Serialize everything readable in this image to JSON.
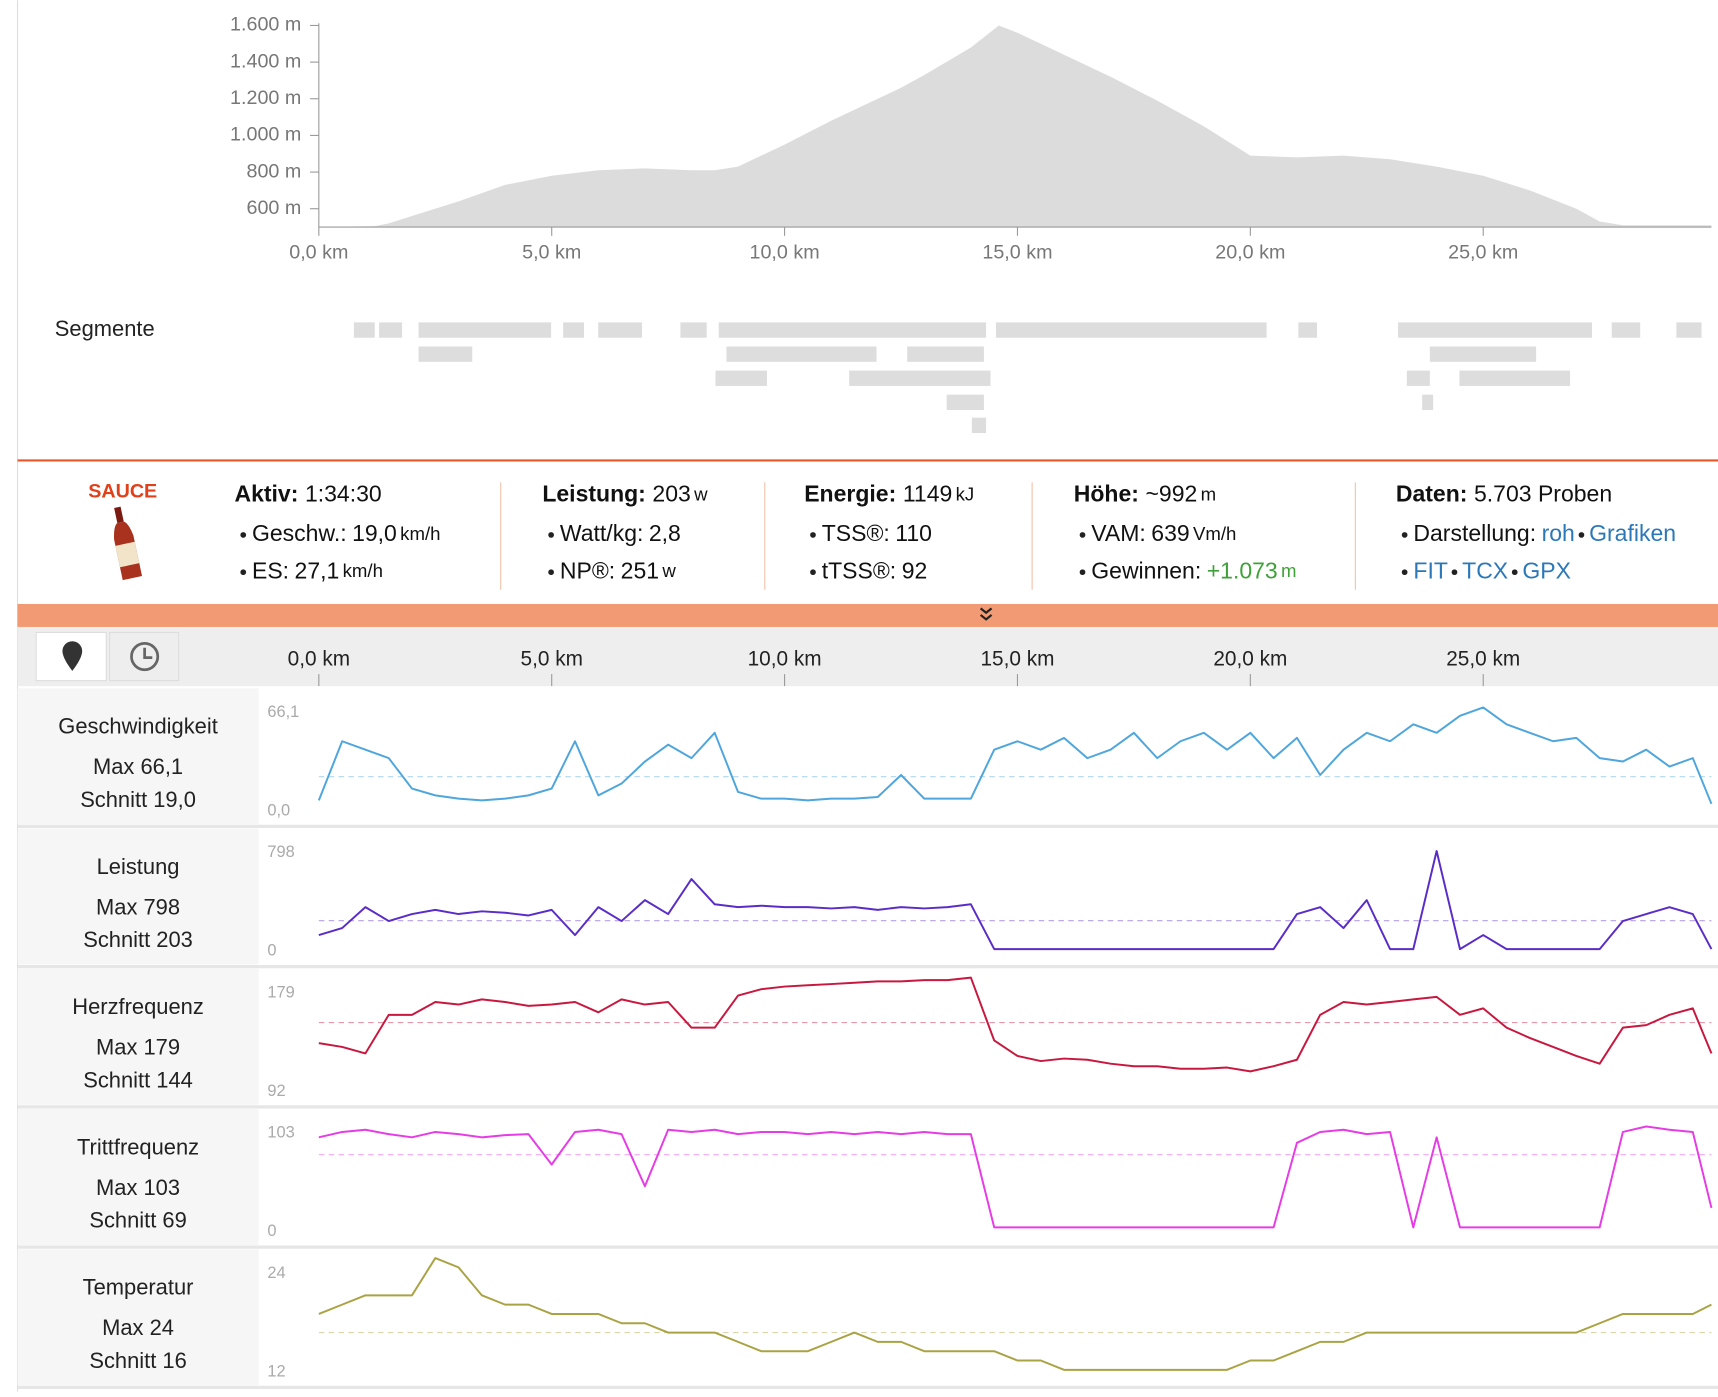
{
  "segments_label": "Segmente",
  "logo": "SAUCE",
  "stats": [
    {
      "label": "Aktiv:",
      "value": "1:34:30",
      "rows": [
        {
          "label": "Geschw.:",
          "value": "19,0",
          "unit": "km/h"
        },
        {
          "label": "ES:",
          "value": "27,1",
          "unit": "km/h"
        }
      ]
    },
    {
      "label": "Leistung:",
      "value": "203",
      "unit": "w",
      "rows": [
        {
          "label": "Watt/kg:",
          "value": "2,8"
        },
        {
          "label": "NP®:",
          "value": "251",
          "unit": "w"
        }
      ]
    },
    {
      "label": "Energie:",
      "value": "1149",
      "unit": "kJ",
      "rows": [
        {
          "label": "TSS®:",
          "value": "110"
        },
        {
          "label": "tTSS®:",
          "value": "92"
        }
      ]
    },
    {
      "label": "Höhe:",
      "value": "~992",
      "unit": "m",
      "rows": [
        {
          "label": "VAM:",
          "value": "639",
          "unit": "Vm/h"
        },
        {
          "label": "Gewinnen:",
          "value": "+1.073",
          "unit": "m",
          "positive": true
        }
      ]
    },
    {
      "label": "Daten:",
      "value": "5.703 Proben",
      "rows": [
        {
          "label": "Darstellung:",
          "links": [
            "roh",
            "Grafiken"
          ]
        },
        {
          "links": [
            "FIT",
            "TCX",
            "GPX"
          ]
        }
      ]
    }
  ],
  "chart_data": [
    {
      "type": "area",
      "color": "#dcdcdc",
      "x": [
        0,
        1.2,
        1.5,
        2,
        3,
        4,
        5,
        6,
        7,
        8,
        8.5,
        9,
        10,
        11,
        12,
        12.5,
        13,
        14,
        14.6,
        15,
        16,
        17,
        18,
        19,
        20,
        21,
        22,
        23,
        24,
        25,
        26,
        27,
        27.5,
        28,
        29,
        29.9
      ],
      "values": [
        500,
        505,
        520,
        560,
        640,
        730,
        780,
        810,
        820,
        810,
        810,
        830,
        950,
        1080,
        1200,
        1260,
        1330,
        1480,
        1600,
        1560,
        1440,
        1320,
        1190,
        1050,
        890,
        880,
        890,
        870,
        830,
        780,
        700,
        600,
        530,
        510,
        510,
        510
      ],
      "xlim": [
        0,
        29.9
      ],
      "ylim": [
        500,
        1600
      ],
      "xticks": [
        {
          "value": 0,
          "label": "0,0 km"
        },
        {
          "value": 5,
          "label": "5,0 km"
        },
        {
          "value": 10,
          "label": "10,0 km"
        },
        {
          "value": 15,
          "label": "15,0 km"
        },
        {
          "value": 20,
          "label": "20,0 km"
        },
        {
          "value": 25,
          "label": "25,0 km"
        }
      ],
      "yticks": [
        {
          "value": 600,
          "label": "600 m"
        },
        {
          "value": 800,
          "label": "800 m"
        },
        {
          "value": 1000,
          "label": "1.000 m"
        },
        {
          "value": 1200,
          "label": "1.200 m"
        },
        {
          "value": 1400,
          "label": "1.400 m"
        },
        {
          "value": 1600,
          "label": "1.600 m"
        }
      ]
    },
    {
      "type": "panels",
      "xlim": [
        0,
        29.9
      ],
      "xticks": [
        {
          "value": 0,
          "label": "0,0 km"
        },
        {
          "value": 5,
          "label": "5,0 km"
        },
        {
          "value": 10,
          "label": "10,0 km"
        },
        {
          "value": 15,
          "label": "15,0 km"
        },
        {
          "value": 20,
          "label": "20,0 km"
        },
        {
          "value": 25,
          "label": "25,0 km"
        }
      ],
      "x": [
        0,
        0.5,
        1,
        1.5,
        2,
        2.5,
        3,
        3.5,
        4,
        4.5,
        5,
        5.5,
        6,
        6.5,
        7,
        7.5,
        8,
        8.5,
        9,
        9.5,
        10,
        10.5,
        11,
        11.5,
        12,
        12.5,
        13,
        13.5,
        14,
        14.5,
        15,
        15.5,
        16,
        16.5,
        17,
        17.5,
        18,
        18.5,
        19,
        19.5,
        20,
        20.5,
        21,
        21.5,
        22,
        22.5,
        23,
        23.5,
        24,
        24.5,
        25,
        25.5,
        26,
        26.5,
        27,
        27.5,
        28,
        28.5,
        29,
        29.5,
        29.9
      ],
      "series": [
        {
          "name": "Geschwindigkeit",
          "max_label": "Max 66,1",
          "avg_label": "Schnitt 19,0",
          "avg": 19.0,
          "color": "#4ea6dc",
          "ylim": [
            0,
            66.1
          ],
          "yticks": [
            {
              "value": 0,
              "label": "0,0"
            },
            {
              "value": 66.1,
              "label": "66,1"
            }
          ],
          "values": [
            5,
            40,
            35,
            30,
            12,
            8,
            6,
            5,
            6,
            8,
            12,
            40,
            8,
            15,
            28,
            38,
            30,
            45,
            10,
            6,
            6,
            5,
            6,
            6,
            7,
            20,
            6,
            6,
            6,
            35,
            40,
            35,
            42,
            30,
            35,
            45,
            30,
            40,
            45,
            35,
            45,
            30,
            42,
            20,
            35,
            45,
            40,
            50,
            45,
            55,
            60,
            50,
            45,
            40,
            42,
            30,
            28,
            35,
            25,
            30,
            3
          ]
        },
        {
          "name": "Leistung",
          "max_label": "Max 798",
          "avg_label": "Schnitt 203",
          "avg": 203,
          "color": "#5a2dc8",
          "ylim": [
            0,
            798
          ],
          "yticks": [
            0,
            798
          ],
          "values": [
            100,
            150,
            300,
            200,
            250,
            280,
            250,
            270,
            260,
            240,
            280,
            100,
            300,
            200,
            350,
            250,
            500,
            320,
            300,
            310,
            300,
            300,
            290,
            300,
            280,
            300,
            290,
            300,
            320,
            0,
            0,
            0,
            0,
            0,
            0,
            0,
            0,
            0,
            0,
            0,
            0,
            0,
            250,
            300,
            150,
            350,
            0,
            0,
            700,
            0,
            100,
            0,
            0,
            0,
            0,
            0,
            200,
            250,
            300,
            250,
            0
          ]
        },
        {
          "name": "Herzfrequenz",
          "max_label": "Max 179",
          "avg_label": "Schnitt 144",
          "avg": 144,
          "color": "#c8183f",
          "ylim": [
            92,
            179
          ],
          "yticks": [
            92,
            179
          ],
          "values": [
            128,
            125,
            120,
            150,
            150,
            160,
            158,
            162,
            160,
            157,
            158,
            160,
            152,
            162,
            158,
            160,
            140,
            140,
            165,
            170,
            172,
            173,
            174,
            175,
            176,
            176,
            177,
            177,
            179,
            130,
            118,
            114,
            116,
            115,
            112,
            110,
            110,
            108,
            108,
            109,
            106,
            110,
            115,
            150,
            160,
            158,
            160,
            162,
            164,
            150,
            155,
            140,
            132,
            125,
            118,
            112,
            140,
            142,
            150,
            155,
            120
          ]
        },
        {
          "name": "Trittfrequenz",
          "max_label": "Max 103",
          "avg_label": "Schnitt 69",
          "avg": 69,
          "color": "#e63ce6",
          "ylim": [
            0,
            103
          ],
          "yticks": [
            0,
            103
          ],
          "values": [
            85,
            90,
            92,
            88,
            85,
            90,
            88,
            85,
            87,
            88,
            60,
            90,
            92,
            88,
            40,
            92,
            90,
            92,
            88,
            90,
            90,
            88,
            90,
            88,
            90,
            88,
            90,
            88,
            88,
            2,
            2,
            2,
            2,
            2,
            2,
            2,
            2,
            2,
            2,
            2,
            2,
            2,
            80,
            90,
            92,
            88,
            90,
            2,
            85,
            2,
            2,
            2,
            2,
            2,
            2,
            2,
            90,
            95,
            92,
            90,
            20
          ]
        },
        {
          "name": "Temperatur",
          "max_label": "Max 24",
          "avg_label": "Schnitt 16",
          "avg": 16,
          "color": "#aaa344",
          "ylim": [
            12,
            24
          ],
          "yticks": [
            12,
            24
          ],
          "values": [
            18,
            19,
            20,
            20,
            20,
            24,
            23,
            20,
            19,
            19,
            18,
            18,
            18,
            17,
            17,
            16,
            16,
            16,
            15,
            14,
            14,
            14,
            15,
            16,
            15,
            15,
            14,
            14,
            14,
            14,
            13,
            13,
            12,
            12,
            12,
            12,
            12,
            12,
            12,
            12,
            13,
            13,
            14,
            15,
            15,
            16,
            16,
            16,
            16,
            16,
            16,
            16,
            16,
            16,
            16,
            17,
            18,
            18,
            18,
            18,
            19
          ]
        }
      ]
    }
  ]
}
